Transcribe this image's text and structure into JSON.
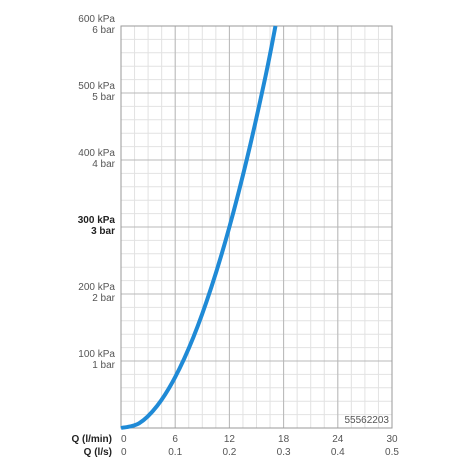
{
  "chart_data": {
    "type": "line",
    "code": "55562203",
    "x_axes": [
      {
        "label": "Q (l/min)",
        "ticks": [
          "0",
          "6",
          "12",
          "18",
          "24",
          "30"
        ],
        "values": [
          0,
          6,
          12,
          18,
          24,
          30
        ]
      },
      {
        "label": "Q (l/s)",
        "ticks": [
          "0",
          "0.1",
          "0.2",
          "0.3",
          "0.4",
          "0.5"
        ],
        "values": [
          0,
          0.1,
          0.2,
          0.3,
          0.4,
          0.5
        ]
      }
    ],
    "y_ticks": [
      {
        "value": 600,
        "kpa": "600 kPa",
        "bar": "6 bar",
        "bold": false
      },
      {
        "value": 500,
        "kpa": "500 kPa",
        "bar": "5 bar",
        "bold": false
      },
      {
        "value": 400,
        "kpa": "400 kPa",
        "bar": "4 bar",
        "bold": false
      },
      {
        "value": 300,
        "kpa": "300 kPa",
        "bar": "3 bar",
        "bold": true
      },
      {
        "value": 200,
        "kpa": "200 kPa",
        "bar": "2 bar",
        "bold": false
      },
      {
        "value": 100,
        "kpa": "100 kPa",
        "bar": "1 bar",
        "bold": false
      }
    ],
    "xlim": [
      0,
      30
    ],
    "ylim": [
      0,
      600
    ],
    "grid": true,
    "series": [
      {
        "color": "#1f8ad6",
        "x": [
          0,
          2,
          4,
          6,
          8,
          10,
          12,
          14,
          16,
          17.1
        ],
        "y": [
          0,
          7,
          33,
          76,
          135,
          210,
          300,
          405,
          525,
          600
        ]
      }
    ]
  }
}
